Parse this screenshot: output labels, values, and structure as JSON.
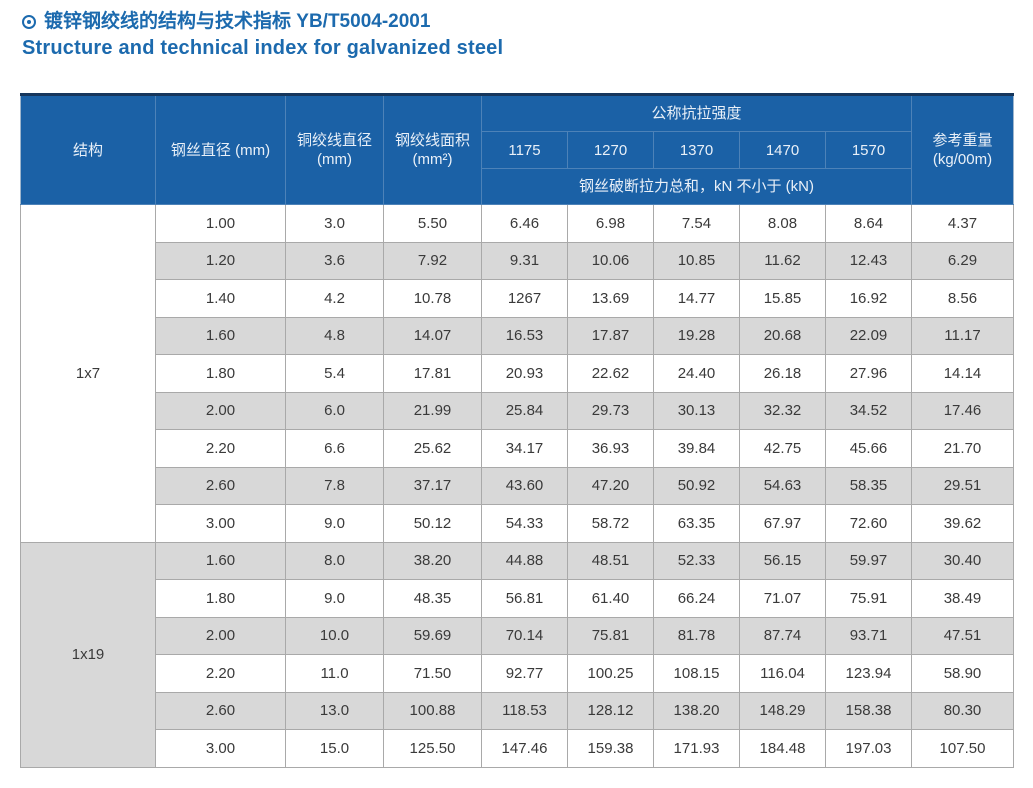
{
  "title": {
    "bullet": "circled-dot",
    "line1": "镀锌钢绞线的结构与技术指标 YB/T5004-2001",
    "line2": "Structure and technical index for galvanized steel"
  },
  "colors": {
    "title_blue": "#1c6aae",
    "header_bg": "#1b61a6",
    "header_divider": "#4d82b8",
    "table_top_border": "#16365c",
    "body_border": "#a9a9a9",
    "stripe_gray": "#d8d8d8"
  },
  "table": {
    "header": {
      "structure": "结构",
      "wire_diameter": "钢丝直径 (mm)",
      "strand_diameter_line1": "铜绞线直径",
      "strand_diameter_line2": "(mm)",
      "strand_area_line1": "钢绞线面积",
      "strand_area_line2": "(mm²)",
      "tensile_group": "公称抗拉强度",
      "tensile_grades": [
        "1175",
        "1270",
        "1370",
        "1470",
        "1570"
      ],
      "breaking_note": "钢丝破断拉力总和，kN 不小于 (kN)",
      "weight_line1": "参考重量",
      "weight_line2": "(kg/00m)"
    },
    "sections": [
      {
        "structure": "1x7",
        "rows": [
          [
            "1.00",
            "3.0",
            "5.50",
            "6.46",
            "6.98",
            "7.54",
            "8.08",
            "8.64",
            "4.37"
          ],
          [
            "1.20",
            "3.6",
            "7.92",
            "9.31",
            "10.06",
            "10.85",
            "11.62",
            "12.43",
            "6.29"
          ],
          [
            "1.40",
            "4.2",
            "10.78",
            "1267",
            "13.69",
            "14.77",
            "15.85",
            "16.92",
            "8.56"
          ],
          [
            "1.60",
            "4.8",
            "14.07",
            "16.53",
            "17.87",
            "19.28",
            "20.68",
            "22.09",
            "11.17"
          ],
          [
            "1.80",
            "5.4",
            "17.81",
            "20.93",
            "22.62",
            "24.40",
            "26.18",
            "27.96",
            "14.14"
          ],
          [
            "2.00",
            "6.0",
            "21.99",
            "25.84",
            "29.73",
            "30.13",
            "32.32",
            "34.52",
            "17.46"
          ],
          [
            "2.20",
            "6.6",
            "25.62",
            "34.17",
            "36.93",
            "39.84",
            "42.75",
            "45.66",
            "21.70"
          ],
          [
            "2.60",
            "7.8",
            "37.17",
            "43.60",
            "47.20",
            "50.92",
            "54.63",
            "58.35",
            "29.51"
          ],
          [
            "3.00",
            "9.0",
            "50.12",
            "54.33",
            "58.72",
            "63.35",
            "67.97",
            "72.60",
            "39.62"
          ]
        ]
      },
      {
        "structure": "1x19",
        "rows": [
          [
            "1.60",
            "8.0",
            "38.20",
            "44.88",
            "48.51",
            "52.33",
            "56.15",
            "59.97",
            "30.40"
          ],
          [
            "1.80",
            "9.0",
            "48.35",
            "56.81",
            "61.40",
            "66.24",
            "71.07",
            "75.91",
            "38.49"
          ],
          [
            "2.00",
            "10.0",
            "59.69",
            "70.14",
            "75.81",
            "81.78",
            "87.74",
            "93.71",
            "47.51"
          ],
          [
            "2.20",
            "11.0",
            "71.50",
            "92.77",
            "100.25",
            "108.15",
            "116.04",
            "123.94",
            "58.90"
          ],
          [
            "2.60",
            "13.0",
            "100.88",
            "118.53",
            "128.12",
            "138.20",
            "148.29",
            "158.38",
            "80.30"
          ],
          [
            "3.00",
            "15.0",
            "125.50",
            "147.46",
            "159.38",
            "171.93",
            "184.48",
            "197.03",
            "107.50"
          ]
        ]
      }
    ]
  }
}
